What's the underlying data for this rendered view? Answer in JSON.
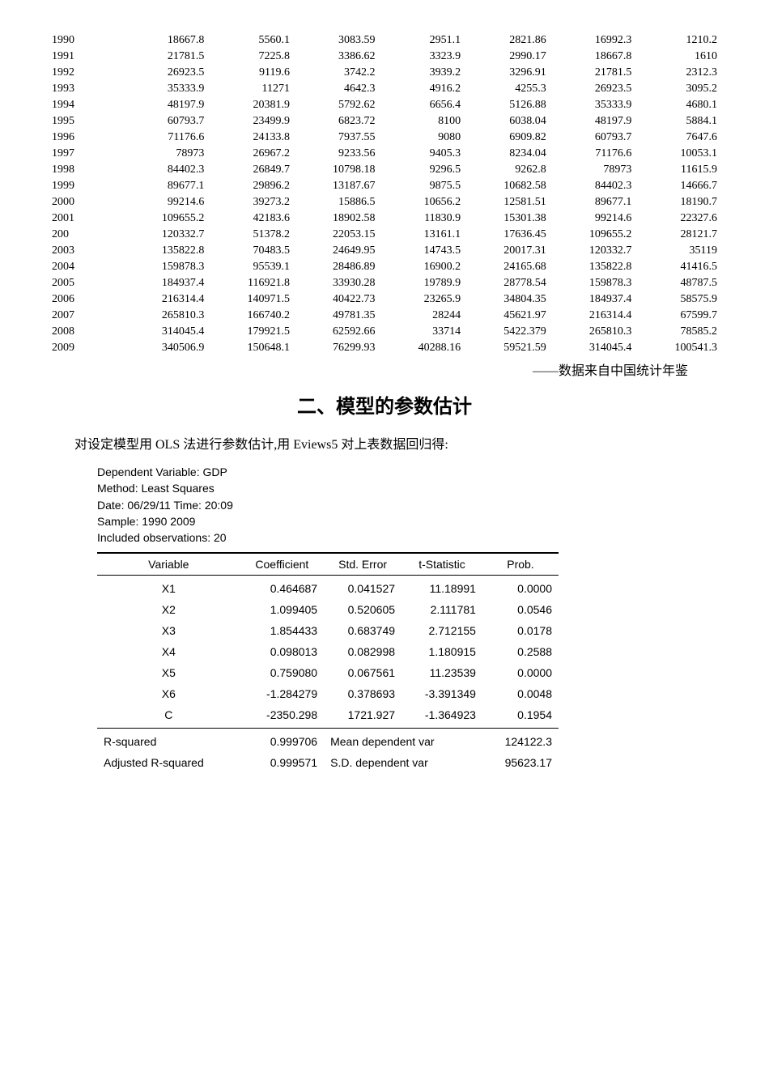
{
  "yearly": {
    "type": "table",
    "rows": [
      [
        "1990",
        "18667.8",
        "5560.1",
        "3083.59",
        "2951.1",
        "2821.86",
        "16992.3",
        "1210.2"
      ],
      [
        "1991",
        "21781.5",
        "7225.8",
        "3386.62",
        "3323.9",
        "2990.17",
        "18667.8",
        "1610"
      ],
      [
        "1992",
        "26923.5",
        "9119.6",
        "3742.2",
        "3939.2",
        "3296.91",
        "21781.5",
        "2312.3"
      ],
      [
        "1993",
        "35333.9",
        "11271",
        "4642.3",
        "4916.2",
        "4255.3",
        "26923.5",
        "3095.2"
      ],
      [
        "1994",
        "48197.9",
        "20381.9",
        "5792.62",
        "6656.4",
        "5126.88",
        "35333.9",
        "4680.1"
      ],
      [
        "1995",
        "60793.7",
        "23499.9",
        "6823.72",
        "8100",
        "6038.04",
        "48197.9",
        "5884.1"
      ],
      [
        "1996",
        "71176.6",
        "24133.8",
        "7937.55",
        "9080",
        "6909.82",
        "60793.7",
        "7647.6"
      ],
      [
        "1997",
        "78973",
        "26967.2",
        "9233.56",
        "9405.3",
        "8234.04",
        "71176.6",
        "10053.1"
      ],
      [
        "1998",
        "84402.3",
        "26849.7",
        "10798.18",
        "9296.5",
        "9262.8",
        "78973",
        "11615.9"
      ],
      [
        "1999",
        "89677.1",
        "29896.2",
        "13187.67",
        "9875.5",
        "10682.58",
        "84402.3",
        "14666.7"
      ],
      [
        "2000",
        "99214.6",
        "39273.2",
        "15886.5",
        "10656.2",
        "12581.51",
        "89677.1",
        "18190.7"
      ],
      [
        "2001",
        "109655.2",
        "42183.6",
        "18902.58",
        "11830.9",
        "15301.38",
        "99214.6",
        "22327.6"
      ],
      [
        "200",
        "120332.7",
        "51378.2",
        "22053.15",
        "13161.1",
        "17636.45",
        "109655.2",
        "28121.7"
      ],
      [
        "2003",
        "135822.8",
        "70483.5",
        "24649.95",
        "14743.5",
        "20017.31",
        "120332.7",
        "35119"
      ],
      [
        "2004",
        "159878.3",
        "95539.1",
        "28486.89",
        "16900.2",
        "24165.68",
        "135822.8",
        "41416.5"
      ],
      [
        "2005",
        "184937.4",
        "116921.8",
        "33930.28",
        "19789.9",
        "28778.54",
        "159878.3",
        "48787.5"
      ],
      [
        "2006",
        "216314.4",
        "140971.5",
        "40422.73",
        "23265.9",
        "34804.35",
        "184937.4",
        "58575.9"
      ],
      [
        "2007",
        "265810.3",
        "166740.2",
        "49781.35",
        "28244",
        "45621.97",
        "216314.4",
        "67599.7"
      ],
      [
        "2008",
        "314045.4",
        "179921.5",
        "62592.66",
        "33714",
        "5422.379",
        "265810.3",
        "78585.2"
      ],
      [
        "2009",
        "340506.9",
        "150648.1",
        "76299.93",
        "40288.16",
        "59521.59",
        "314045.4",
        "100541.3"
      ]
    ]
  },
  "source_note": "——数据来自中国统计年鉴",
  "section_title": "二、模型的参数估计",
  "body_text": "对设定模型用 OLS 法进行参数估计,用 Eviews5 对上表数据回归得:",
  "reg_meta": [
    "Dependent Variable: GDP",
    "Method: Least Squares",
    "Date: 06/29/11   Time: 20:09",
    "Sample: 1990 2009",
    "Included observations: 20"
  ],
  "reg_header": [
    "Variable",
    "Coefficient",
    "Std. Error",
    "t-Statistic",
    "Prob."
  ],
  "reg_rows": [
    [
      "X1",
      "0.464687",
      "0.041527",
      "11.18991",
      "0.0000"
    ],
    [
      "X2",
      "1.099405",
      "0.520605",
      "2.111781",
      "0.0546"
    ],
    [
      "X3",
      "1.854433",
      "0.683749",
      "2.712155",
      "0.0178"
    ],
    [
      "X4",
      "0.098013",
      "0.082998",
      "1.180915",
      "0.2588"
    ],
    [
      "X5",
      "0.759080",
      "0.067561",
      "11.23539",
      "0.0000"
    ],
    [
      "X6",
      "-1.284279",
      "0.378693",
      "-3.391349",
      "0.0048"
    ],
    [
      "C",
      "-2350.298",
      "1721.927",
      "-1.364923",
      "0.1954"
    ]
  ],
  "reg_stats": [
    {
      "label": "R-squared",
      "val": "0.999706",
      "label2": "Mean dependent var",
      "val2": "124122.3"
    },
    {
      "label": "Adjusted R-squared",
      "val": "0.999571",
      "label2": "S.D. dependent var",
      "val2": "95623.17"
    }
  ]
}
